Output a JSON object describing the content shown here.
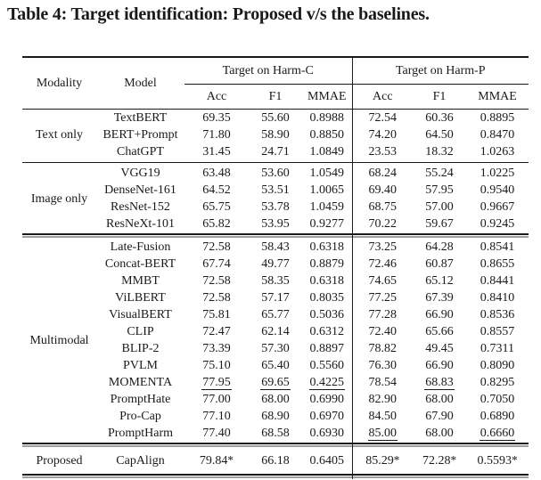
{
  "caption": "Table 4: Target identification: Proposed v/s the baselines.",
  "table": {
    "headers": {
      "modality": "Modality",
      "model": "Model",
      "group_harm_c": "Target on Harm-C",
      "group_harm_p": "Target on Harm-P",
      "metrics": [
        "Acc",
        "F1",
        "MMAE"
      ]
    },
    "sections": [
      {
        "modality": "Text only",
        "divider_after": "single",
        "rows": [
          {
            "model": "TextBERT",
            "cells": [
              "69.35",
              "55.60",
              "0.8988",
              "72.54",
              "60.36",
              "0.8895"
            ]
          },
          {
            "model": "BERT+Prompt",
            "cells": [
              "71.80",
              "58.90",
              "0.8850",
              "74.20",
              "64.50",
              "0.8470"
            ]
          },
          {
            "model": "ChatGPT",
            "cells": [
              "31.45",
              "24.71",
              "1.0849",
              "23.53",
              "18.32",
              "1.0263"
            ]
          }
        ]
      },
      {
        "modality": "Image only",
        "divider_after": "double",
        "rows": [
          {
            "model": "VGG19",
            "cells": [
              "63.48",
              "53.60",
              "1.0549",
              "68.24",
              "55.24",
              "1.0225"
            ]
          },
          {
            "model": "DenseNet-161",
            "cells": [
              "64.52",
              "53.51",
              "1.0065",
              "69.40",
              "57.95",
              "0.9540"
            ]
          },
          {
            "model": "ResNet-152",
            "cells": [
              "65.75",
              "53.78",
              "1.0459",
              "68.75",
              "57.00",
              "0.9667"
            ]
          },
          {
            "model": "ResNeXt-101",
            "cells": [
              "65.82",
              "53.95",
              "0.9277",
              "70.22",
              "59.67",
              "0.9245"
            ]
          }
        ]
      },
      {
        "modality": "Multimodal",
        "divider_after": "double",
        "rows": [
          {
            "model": "Late-Fusion",
            "cells": [
              "72.58",
              "58.43",
              "0.6318",
              "73.25",
              "64.28",
              "0.8541"
            ]
          },
          {
            "model": "Concat-BERT",
            "cells": [
              "67.74",
              "49.77",
              "0.8879",
              "72.46",
              "60.87",
              "0.8655"
            ]
          },
          {
            "model": "MMBT",
            "cells": [
              "72.58",
              "58.35",
              "0.6318",
              "74.65",
              "65.12",
              "0.8441"
            ]
          },
          {
            "model": "ViLBERT",
            "cells": [
              "72.58",
              "57.17",
              "0.8035",
              "77.25",
              "67.39",
              "0.8410"
            ]
          },
          {
            "model": "VisualBERT",
            "cells": [
              "75.81",
              "65.77",
              "0.5036",
              "77.28",
              "66.90",
              "0.8536"
            ]
          },
          {
            "model": "CLIP",
            "cells": [
              "72.47",
              "62.14",
              "0.6312",
              "72.40",
              "65.66",
              "0.8557"
            ]
          },
          {
            "model": "BLIP-2",
            "cells": [
              "73.39",
              "57.30",
              "0.8897",
              "78.82",
              "49.45",
              "0.7311"
            ]
          },
          {
            "model": "PVLM",
            "cells": [
              "75.10",
              "65.40",
              "0.5560",
              "76.30",
              "66.90",
              "0.8090"
            ]
          },
          {
            "model": "MOMENTA",
            "cells": [
              {
                "v": "77.95",
                "u": true
              },
              {
                "v": "69.65",
                "u": true
              },
              {
                "v": "0.4225",
                "u": true
              },
              "78.54",
              {
                "v": "68.83",
                "u": true
              },
              "0.8295"
            ]
          },
          {
            "model": "PromptHate",
            "cells": [
              "77.00",
              "68.00",
              "0.6990",
              "82.90",
              "68.00",
              "0.7050"
            ]
          },
          {
            "model": "Pro-Cap",
            "cells": [
              "77.10",
              "68.90",
              "0.6970",
              "84.50",
              "67.90",
              "0.6890"
            ]
          },
          {
            "model": "PromptHarm",
            "cells": [
              "77.40",
              "68.58",
              "0.6930",
              {
                "v": "85.00",
                "u": true
              },
              "68.00",
              {
                "v": "0.6660",
                "u": true
              }
            ]
          }
        ]
      },
      {
        "modality": "Proposed",
        "divider_after": "double",
        "rows": [
          {
            "model": "CapAlign",
            "cells": [
              "79.84*",
              "66.18",
              "0.6405",
              "85.29*",
              "72.28*",
              "0.5593*"
            ]
          }
        ]
      }
    ]
  },
  "colors": {
    "text": "#1a1a1a",
    "background": "#ffffff",
    "rule_dark": "#1a1a1a",
    "rule_gray": "#9f9f9f"
  }
}
